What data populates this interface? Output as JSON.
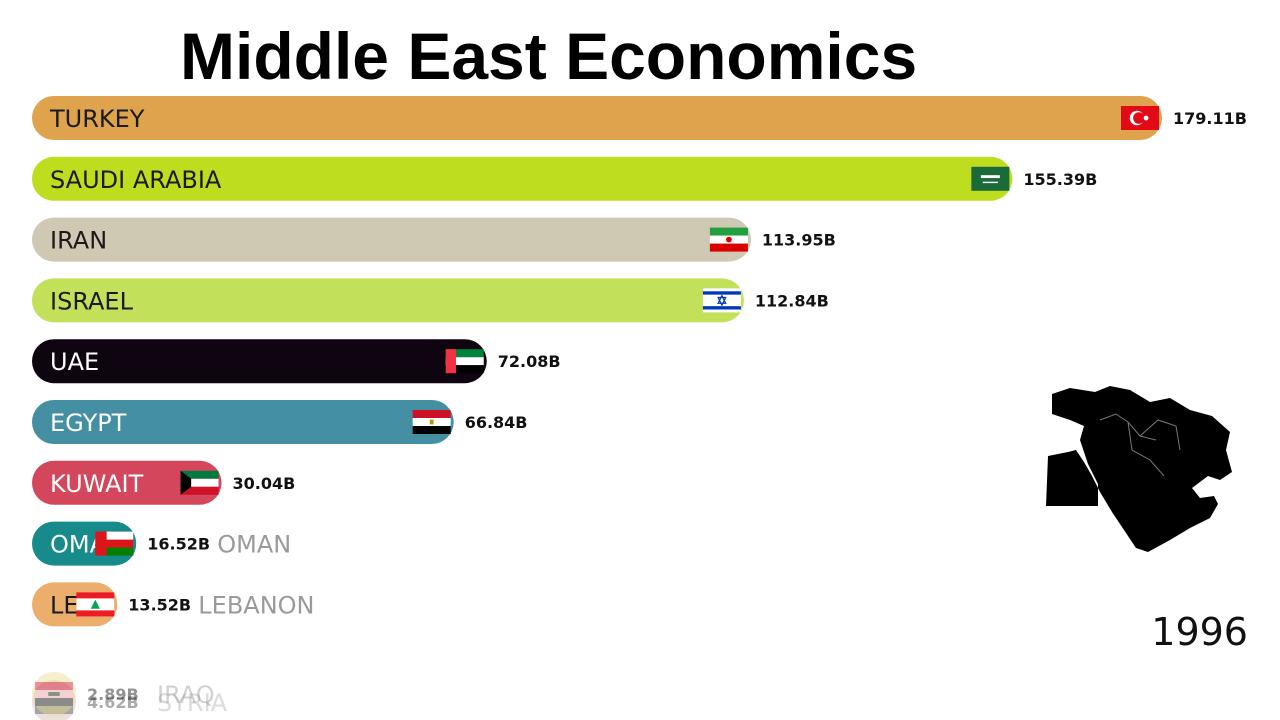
{
  "title": "Middle East Economics",
  "year": "1996",
  "chart_data": {
    "type": "bar",
    "orientation": "horizontal",
    "title": "Middle East Economics",
    "xlim": [
      0,
      190
    ],
    "unit": "B",
    "categories": [
      "TURKEY",
      "SAUDI ARABIA",
      "IRAN",
      "ISRAEL",
      "UAE",
      "EGYPT",
      "KUWAIT",
      "OMAN",
      "LEBANON",
      "SYRIA",
      "IRAQ"
    ],
    "values": [
      179.11,
      155.39,
      113.95,
      112.84,
      72.08,
      66.84,
      30.04,
      16.52,
      13.52,
      4.62,
      2.89
    ],
    "value_labels": [
      "179.11B",
      "155.39B",
      "113.95B",
      "112.84B",
      "72.08B",
      "66.84B",
      "30.04B",
      "16.52B",
      "13.52B",
      "4.62B",
      "2.89B"
    ],
    "colors": [
      "#dea34c",
      "#bedd1e",
      "#cfc8b2",
      "#c2e05a",
      "#0f0510",
      "#458fa3",
      "#d4465c",
      "#178a8c",
      "#ecae6d",
      "#cfa6a6",
      "#e9dd8c"
    ],
    "flags": [
      "turkey-flag",
      "saudi-arabia-flag",
      "iran-flag",
      "israel-flag",
      "uae-flag",
      "egypt-flag",
      "kuwait-flag",
      "oman-flag",
      "lebanon-flag",
      "syria-flag",
      "iraq-flag"
    ]
  }
}
